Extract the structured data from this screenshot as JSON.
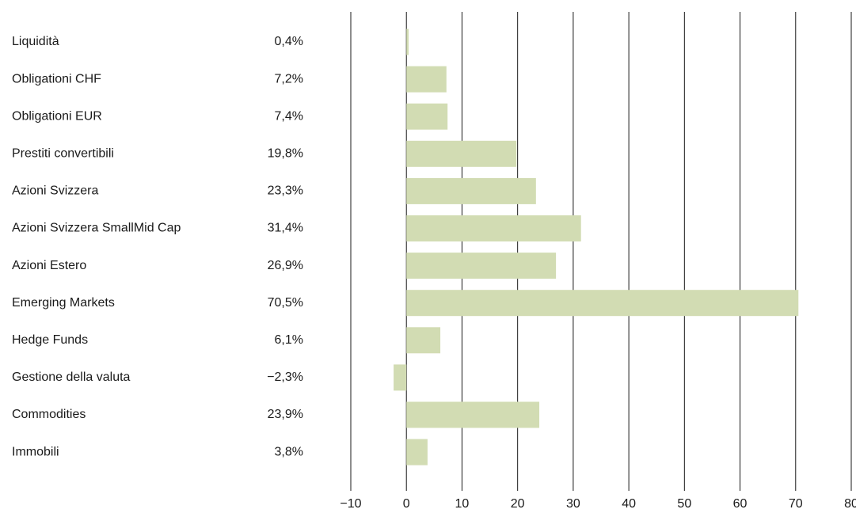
{
  "chart_data": {
    "type": "bar",
    "categories": [
      "Liquidità",
      "Obligationi CHF",
      "Obligationi EUR",
      "Prestiti convertibili",
      "Azioni Svizzera",
      "Azioni Svizzera SmallMid Cap",
      "Azioni Estero",
      "Emerging Markets",
      "Hedge Funds",
      "Gestione della valuta",
      "Commodities",
      "Immobili"
    ],
    "values": [
      0.4,
      7.2,
      7.4,
      19.8,
      23.3,
      31.4,
      26.9,
      70.5,
      6.1,
      -2.3,
      23.9,
      3.8
    ],
    "value_labels": [
      "0,4%",
      "7,2%",
      "7,4%",
      "19,8%",
      "23,3%",
      "31,4%",
      "26,9%",
      "70,5%",
      "6,1%",
      "−2,3%",
      "23,9%",
      "3,8%"
    ],
    "color": "#d2dcb3",
    "xlim": [
      -10,
      80
    ],
    "xticks": [
      {
        "value": -10,
        "label": "−10"
      },
      0,
      10,
      20,
      30,
      40,
      50,
      60,
      70,
      80
    ],
    "grid": true
  }
}
